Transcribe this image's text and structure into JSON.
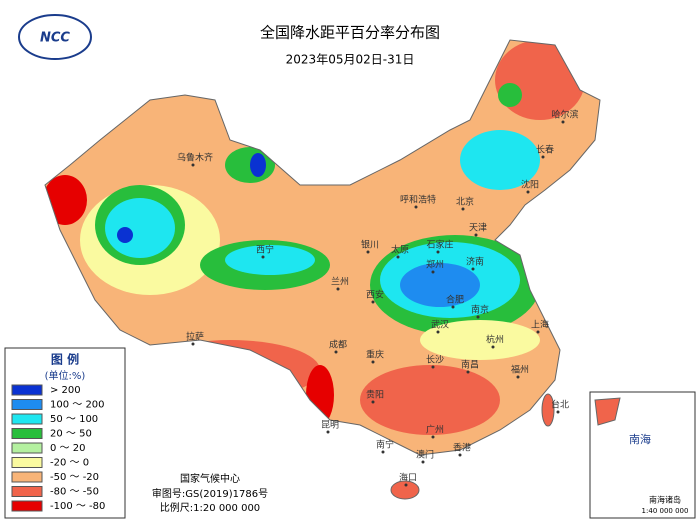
{
  "header": {
    "logo": "NCC",
    "title": "全国降水距平百分率分布图",
    "subtitle": "2023年05月02日-31日"
  },
  "legend": {
    "title": "图 例",
    "unit": "(单位:%)",
    "items": [
      {
        "label": "> 200",
        "color": "#0a32d2"
      },
      {
        "label": "100 ～ 200",
        "color": "#1e8cf0"
      },
      {
        "label": "50 ～ 100",
        "color": "#1ee6f0"
      },
      {
        "label": "20 ～ 50",
        "color": "#28be3c"
      },
      {
        "label": "0 ～ 20",
        "color": "#b4f0a0"
      },
      {
        "label": "-20 ～ 0",
        "color": "#fafaa0"
      },
      {
        "label": "-50 ～ -20",
        "color": "#f8b478"
      },
      {
        "label": "-80 ～ -50",
        "color": "#f0644b"
      },
      {
        "label": "-100 ～ -80",
        "color": "#e60000"
      }
    ]
  },
  "credits": {
    "agency": "国家气候中心",
    "approval": "审图号:GS(2019)1786号",
    "scale": "比例尺:1:20 000 000"
  },
  "inset": {
    "sea": "南海",
    "islands": "南海诸岛",
    "scale": "1:40 000 000"
  },
  "cities": [
    "乌鲁木齐",
    "拉萨",
    "西宁",
    "兰州",
    "银川",
    "呼和浩特",
    "北京",
    "天津",
    "石家庄",
    "太原",
    "济南",
    "郑州",
    "西安",
    "合肥",
    "南京",
    "上海",
    "杭州",
    "武汉",
    "长沙",
    "南昌",
    "福州",
    "台北",
    "广州",
    "南宁",
    "海口",
    "澳门",
    "香港",
    "贵阳",
    "昆明",
    "成都",
    "重庆",
    "沈阳",
    "长春",
    "哈尔滨"
  ]
}
